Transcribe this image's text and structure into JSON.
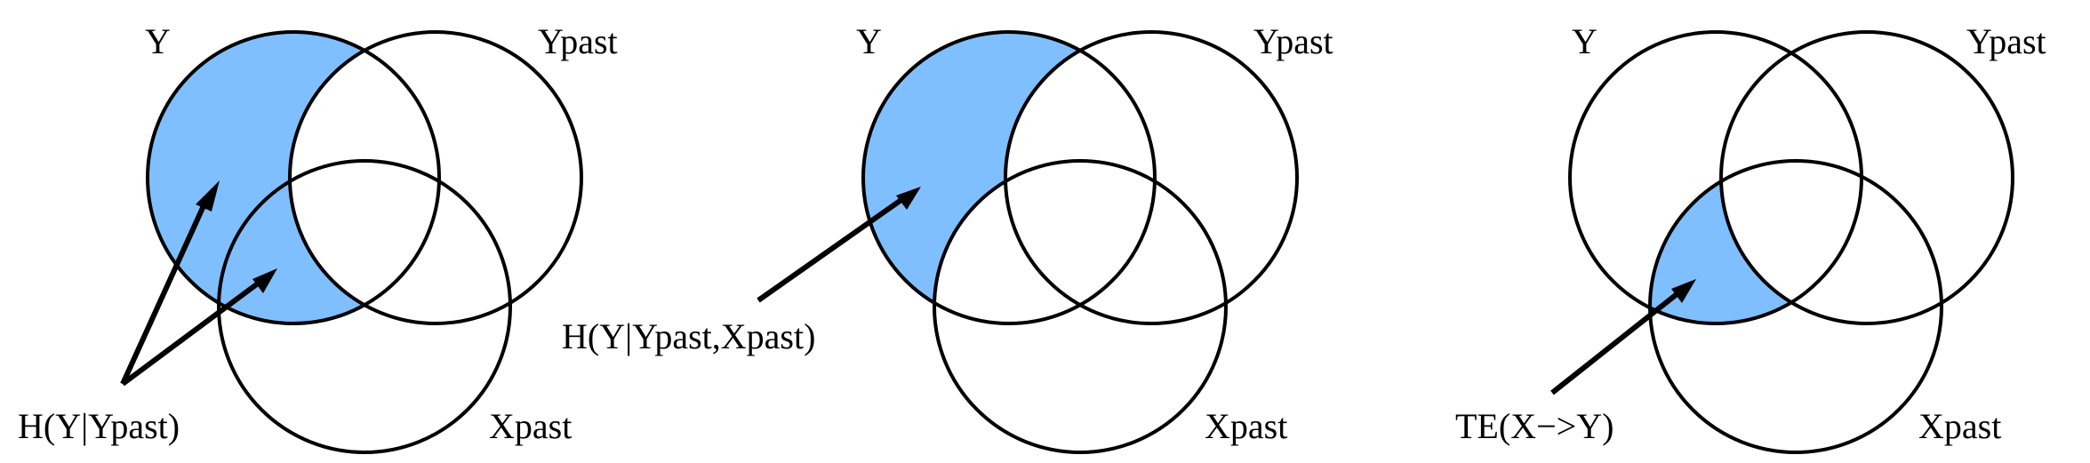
{
  "colors": {
    "shade": "#80bfff",
    "stroke": "#000000",
    "background": "#ffffff"
  },
  "panels": [
    {
      "set_labels": {
        "y": "Y",
        "ypast": "Ypast",
        "xpast": "Xpast"
      },
      "annotation": "H(Y|Ypast)",
      "shaded_region": "Y minus Ypast"
    },
    {
      "set_labels": {
        "y": "Y",
        "ypast": "Ypast",
        "xpast": "Xpast"
      },
      "annotation": "H(Y|Ypast,Xpast)",
      "shaded_region": "Y minus Ypast minus Xpast"
    },
    {
      "set_labels": {
        "y": "Y",
        "ypast": "Ypast",
        "xpast": "Xpast"
      },
      "annotation": "TE(X−>Y)",
      "shaded_region": "Y intersect Xpast minus Ypast"
    }
  ]
}
